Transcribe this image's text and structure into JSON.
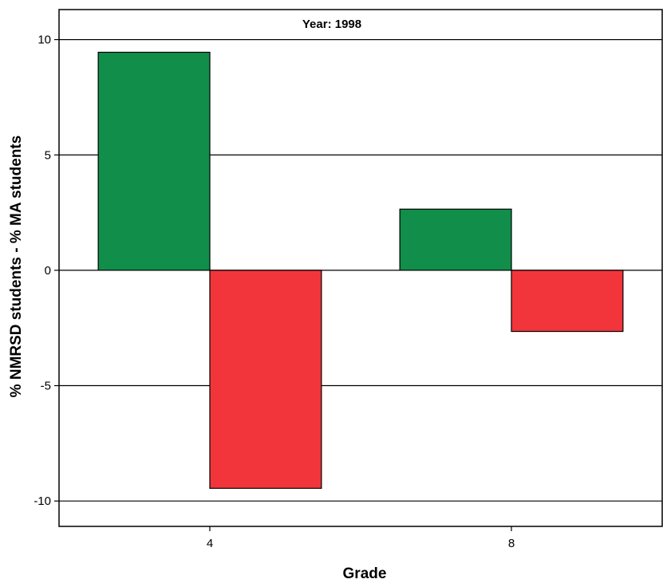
{
  "chart_data": {
    "type": "bar",
    "title": "Year: 1998",
    "xlabel": "Grade",
    "ylabel": "% NMRSD students - % MA students",
    "categories": [
      "4",
      "8"
    ],
    "series": [
      {
        "values": [
          9.45,
          2.65
        ],
        "color": "#118e4a"
      },
      {
        "values": [
          -9.45,
          -2.65
        ],
        "color": "#f2353b"
      }
    ],
    "ylim": [
      -11.1,
      11.3
    ],
    "yticks": [
      -10,
      -5,
      0,
      5,
      10
    ],
    "ytick_labels": [
      "-10",
      "-5",
      "0",
      "5",
      "10"
    ],
    "grid": true
  }
}
